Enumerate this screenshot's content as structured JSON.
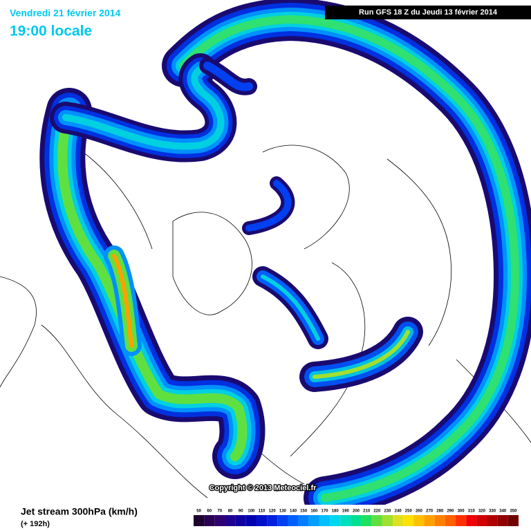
{
  "header": {
    "date": "Vendredi 21 février 2014",
    "time": "19:00 locale",
    "run": "Run GFS 18 Z du Jeudi 13 février 2014"
  },
  "copyright": "Copyright © 2013 Meteociel.fr",
  "legend": {
    "title": "Jet stream 300hPa (km/h)",
    "lead": "(+ 192h)",
    "values": [
      50,
      60,
      70,
      80,
      90,
      100,
      110,
      120,
      130,
      140,
      150,
      160,
      170,
      180,
      190,
      200,
      210,
      220,
      230,
      240,
      250,
      260,
      270,
      280,
      290,
      300,
      310,
      320,
      330,
      340,
      350
    ],
    "colors": [
      "#1e0030",
      "#2a0050",
      "#300070",
      "#200090",
      "#1000a0",
      "#0000b0",
      "#0010c8",
      "#0020e0",
      "#0040f0",
      "#0060ff",
      "#0080ff",
      "#00a0ff",
      "#00c0ff",
      "#00d8f0",
      "#00e0c0",
      "#00e090",
      "#20e060",
      "#60e040",
      "#a0e030",
      "#e0e020",
      "#ffe000",
      "#ffc000",
      "#ffa000",
      "#ff8000",
      "#ff6000",
      "#ff3000",
      "#f00000",
      "#d00000",
      "#b00000",
      "#900000",
      "#700000"
    ]
  }
}
